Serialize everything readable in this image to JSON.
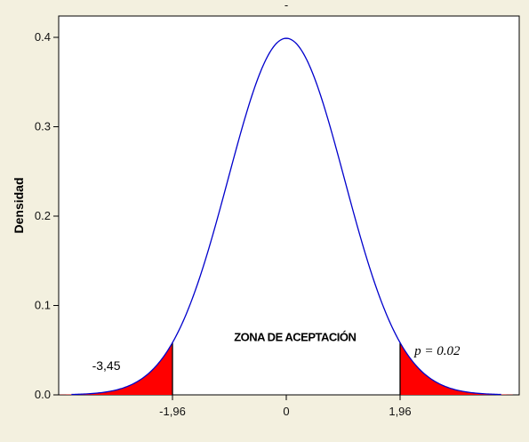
{
  "chart_data": {
    "type": "area",
    "title": "-",
    "ylabel": "Densidad",
    "xlabel": "",
    "xlim": [
      -3.9,
      3.9
    ],
    "ylim": [
      0,
      0.4
    ],
    "yticks": [
      0.0,
      0.1,
      0.2,
      0.3,
      0.4
    ],
    "ytick_labels": [
      "0.0",
      "0.1",
      "0.2",
      "0.3",
      "0.4"
    ],
    "xticks": [
      -1.96,
      0,
      1.96
    ],
    "xtick_labels": [
      "-1,96",
      "0",
      "1,96"
    ],
    "curve": {
      "distribution": "normal",
      "mean": 0,
      "sd": 1,
      "color": "#0000cc"
    },
    "shaded_regions": [
      {
        "from": -3.9,
        "to": -1.96,
        "color": "#ff0000"
      },
      {
        "from": 1.96,
        "to": 3.9,
        "color": "#ff0000"
      }
    ],
    "annotations": [
      {
        "text": "ZONA DE ACEPTACIÓN",
        "x": 0.15,
        "y": 0.06
      },
      {
        "text": "-3,45",
        "x": -3.1,
        "y": 0.028
      },
      {
        "text": "p = 0.02",
        "x": 2.6,
        "y": 0.045
      }
    ],
    "grid": false
  }
}
